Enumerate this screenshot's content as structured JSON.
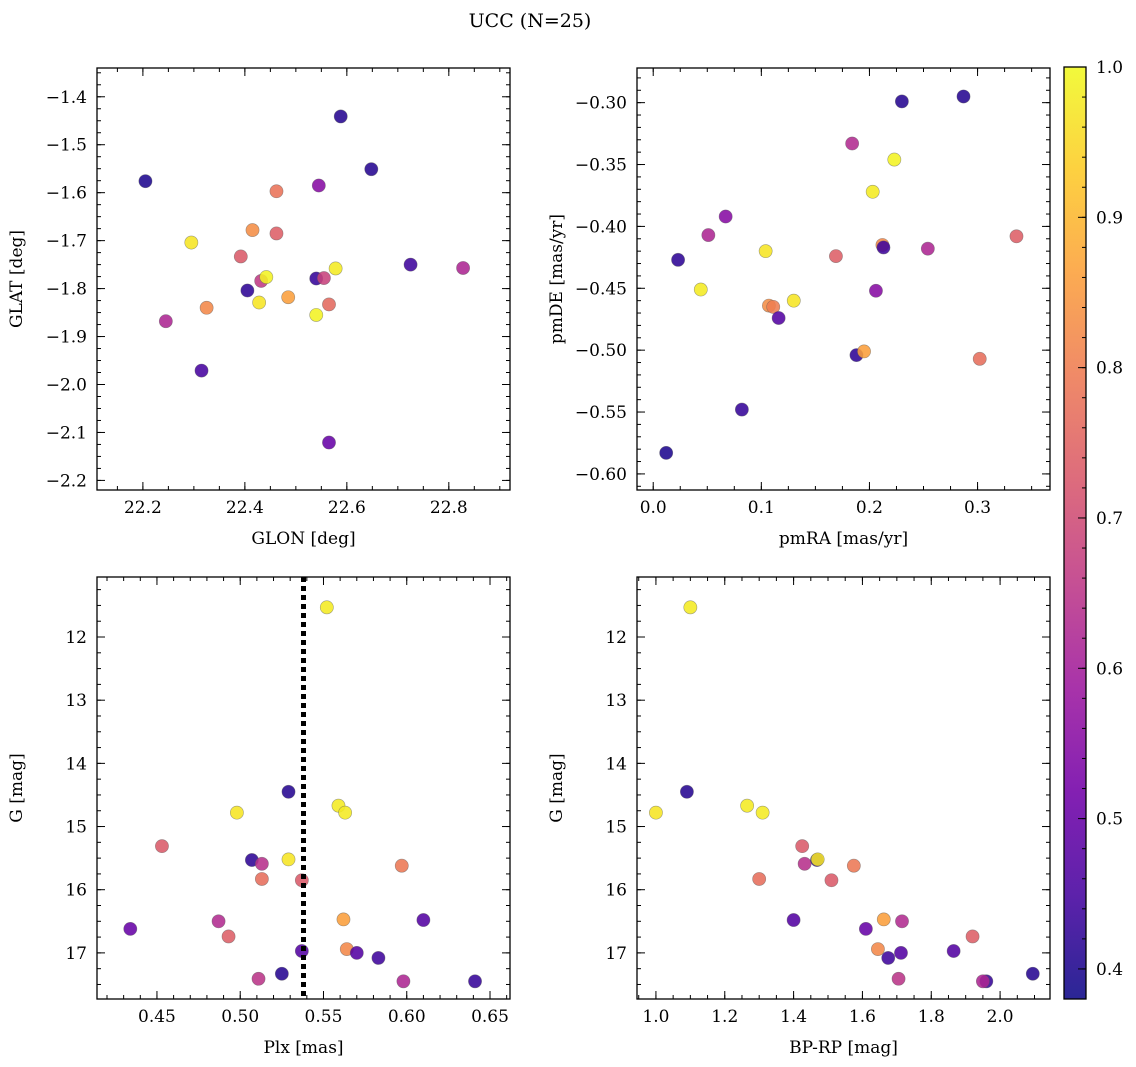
{
  "figure": {
    "title": "UCC (N=25)"
  },
  "colors": {
    "cmap": [
      "#0d0887",
      "#46039f",
      "#7201a8",
      "#9c179e",
      "#bd3786",
      "#d8576b",
      "#ed7953",
      "#fb9f3a",
      "#fdca26",
      "#f0f921"
    ],
    "vline": "#000000"
  },
  "chart_data": [
    {
      "type": "scatter",
      "xlabel": "GLON [deg]",
      "ylabel": "GLAT [deg]",
      "xlim": [
        22.11,
        22.92
      ],
      "ylim": [
        -2.22,
        -1.34
      ],
      "xticks": [
        22.2,
        22.4,
        22.6,
        22.8
      ],
      "xtick_labels": [
        "22.2",
        "22.4",
        "22.6",
        "22.8"
      ],
      "yticks": [
        -2.2,
        -2.1,
        -2.0,
        -1.9,
        -1.8,
        -1.7,
        -1.6,
        -1.5,
        -1.4
      ],
      "ytick_labels": [
        "−2.2",
        "−2.1",
        "−2.0",
        "−1.9",
        "−1.8",
        "−1.7",
        "−1.6",
        "−1.5",
        "−1.4"
      ],
      "x_minor": 0.05,
      "y_minor": 0.025,
      "y_inverted": false,
      "grid": false,
      "points": [
        {
          "x": 22.205,
          "y": -1.576,
          "c": 0.4
        },
        {
          "x": 22.295,
          "y": -1.704,
          "c": 0.97
        },
        {
          "x": 22.245,
          "y": -1.868,
          "c": 0.62
        },
        {
          "x": 22.315,
          "y": -1.971,
          "c": 0.45
        },
        {
          "x": 22.325,
          "y": -1.84,
          "c": 0.82
        },
        {
          "x": 22.392,
          "y": -1.733,
          "c": 0.73
        },
        {
          "x": 22.405,
          "y": -1.804,
          "c": 0.42
        },
        {
          "x": 22.415,
          "y": -1.678,
          "c": 0.83
        },
        {
          "x": 22.432,
          "y": -1.784,
          "c": 0.66
        },
        {
          "x": 22.428,
          "y": -1.829,
          "c": 0.97
        },
        {
          "x": 22.442,
          "y": -1.776,
          "c": 0.99
        },
        {
          "x": 22.462,
          "y": -1.597,
          "c": 0.78
        },
        {
          "x": 22.462,
          "y": -1.685,
          "c": 0.74
        },
        {
          "x": 22.485,
          "y": -1.818,
          "c": 0.86
        },
        {
          "x": 22.54,
          "y": -1.779,
          "c": 0.43
        },
        {
          "x": 22.54,
          "y": -1.855,
          "c": 0.99
        },
        {
          "x": 22.545,
          "y": -1.585,
          "c": 0.55
        },
        {
          "x": 22.555,
          "y": -1.778,
          "c": 0.68
        },
        {
          "x": 22.565,
          "y": -1.833,
          "c": 0.76
        },
        {
          "x": 22.578,
          "y": -1.758,
          "c": 0.98
        },
        {
          "x": 22.565,
          "y": -2.121,
          "c": 0.5
        },
        {
          "x": 22.588,
          "y": -1.441,
          "c": 0.41
        },
        {
          "x": 22.648,
          "y": -1.551,
          "c": 0.41
        },
        {
          "x": 22.725,
          "y": -1.75,
          "c": 0.44
        },
        {
          "x": 22.828,
          "y": -1.757,
          "c": 0.62
        }
      ]
    },
    {
      "type": "scatter",
      "xlabel": "pmRA [mas/yr]",
      "ylabel": "pmDE [mas/yr]",
      "xlim": [
        -0.015,
        0.367
      ],
      "ylim": [
        -0.613,
        -0.272
      ],
      "xticks": [
        0.0,
        0.1,
        0.2,
        0.3
      ],
      "xtick_labels": [
        "0.0",
        "0.1",
        "0.2",
        "0.3"
      ],
      "yticks": [
        -0.6,
        -0.55,
        -0.5,
        -0.45,
        -0.4,
        -0.35,
        -0.3
      ],
      "ytick_labels": [
        "−0.60",
        "−0.55",
        "−0.50",
        "−0.45",
        "−0.40",
        "−0.35",
        "−0.30"
      ],
      "x_minor": 0.025,
      "y_minor": 0.01,
      "y_inverted": false,
      "grid": false,
      "points": [
        {
          "x": 0.012,
          "y": -0.583,
          "c": 0.4
        },
        {
          "x": 0.023,
          "y": -0.427,
          "c": 0.42
        },
        {
          "x": 0.044,
          "y": -0.451,
          "c": 0.98
        },
        {
          "x": 0.051,
          "y": -0.407,
          "c": 0.62
        },
        {
          "x": 0.067,
          "y": -0.392,
          "c": 0.55
        },
        {
          "x": 0.082,
          "y": -0.548,
          "c": 0.43
        },
        {
          "x": 0.104,
          "y": -0.42,
          "c": 0.97
        },
        {
          "x": 0.107,
          "y": -0.464,
          "c": 0.83
        },
        {
          "x": 0.111,
          "y": -0.465,
          "c": 0.8
        },
        {
          "x": 0.116,
          "y": -0.474,
          "c": 0.47
        },
        {
          "x": 0.13,
          "y": -0.46,
          "c": 0.97
        },
        {
          "x": 0.169,
          "y": -0.424,
          "c": 0.74
        },
        {
          "x": 0.184,
          "y": -0.333,
          "c": 0.63
        },
        {
          "x": 0.188,
          "y": -0.504,
          "c": 0.42
        },
        {
          "x": 0.195,
          "y": -0.501,
          "c": 0.86
        },
        {
          "x": 0.203,
          "y": -0.372,
          "c": 0.98
        },
        {
          "x": 0.206,
          "y": -0.452,
          "c": 0.55
        },
        {
          "x": 0.212,
          "y": -0.415,
          "c": 0.82
        },
        {
          "x": 0.213,
          "y": -0.417,
          "c": 0.44
        },
        {
          "x": 0.223,
          "y": -0.346,
          "c": 0.99
        },
        {
          "x": 0.23,
          "y": -0.299,
          "c": 0.41
        },
        {
          "x": 0.254,
          "y": -0.418,
          "c": 0.62
        },
        {
          "x": 0.287,
          "y": -0.295,
          "c": 0.41
        },
        {
          "x": 0.302,
          "y": -0.507,
          "c": 0.77
        },
        {
          "x": 0.336,
          "y": -0.408,
          "c": 0.74
        }
      ]
    },
    {
      "type": "scatter",
      "xlabel": "Plx [mas]",
      "ylabel": "G [mag]",
      "xlim": [
        0.414,
        0.662
      ],
      "ylim": [
        17.73,
        11.05
      ],
      "xticks": [
        0.45,
        0.5,
        0.55,
        0.6,
        0.65
      ],
      "xtick_labels": [
        "0.45",
        "0.50",
        "0.55",
        "0.60",
        "0.65"
      ],
      "yticks": [
        12,
        13,
        14,
        15,
        16,
        17
      ],
      "ytick_labels": [
        "12",
        "13",
        "14",
        "15",
        "16",
        "17"
      ],
      "x_minor": 0.01,
      "y_minor": 0.25,
      "y_inverted": true,
      "grid": false,
      "vline": 0.538,
      "points": [
        {
          "x": 0.434,
          "y": 16.62,
          "c": 0.5
        },
        {
          "x": 0.453,
          "y": 15.31,
          "c": 0.73
        },
        {
          "x": 0.487,
          "y": 16.5,
          "c": 0.63
        },
        {
          "x": 0.493,
          "y": 16.74,
          "c": 0.74
        },
        {
          "x": 0.498,
          "y": 14.78,
          "c": 0.97
        },
        {
          "x": 0.507,
          "y": 15.53,
          "c": 0.42
        },
        {
          "x": 0.511,
          "y": 17.41,
          "c": 0.65
        },
        {
          "x": 0.513,
          "y": 15.59,
          "c": 0.64
        },
        {
          "x": 0.513,
          "y": 15.83,
          "c": 0.77
        },
        {
          "x": 0.525,
          "y": 17.33,
          "c": 0.41
        },
        {
          "x": 0.529,
          "y": 14.45,
          "c": 0.41
        },
        {
          "x": 0.529,
          "y": 15.52,
          "c": 0.97
        },
        {
          "x": 0.537,
          "y": 15.85,
          "c": 0.73
        },
        {
          "x": 0.537,
          "y": 16.97,
          "c": 0.47
        },
        {
          "x": 0.552,
          "y": 11.53,
          "c": 0.98
        },
        {
          "x": 0.559,
          "y": 14.67,
          "c": 0.98
        },
        {
          "x": 0.562,
          "y": 16.47,
          "c": 0.86
        },
        {
          "x": 0.563,
          "y": 14.78,
          "c": 0.98
        },
        {
          "x": 0.564,
          "y": 16.94,
          "c": 0.82
        },
        {
          "x": 0.57,
          "y": 17.0,
          "c": 0.47
        },
        {
          "x": 0.583,
          "y": 17.08,
          "c": 0.44
        },
        {
          "x": 0.597,
          "y": 15.62,
          "c": 0.79
        },
        {
          "x": 0.598,
          "y": 17.45,
          "c": 0.62
        },
        {
          "x": 0.61,
          "y": 16.48,
          "c": 0.47
        },
        {
          "x": 0.641,
          "y": 17.45,
          "c": 0.43
        }
      ]
    },
    {
      "type": "scatter",
      "xlabel": "BP-RP [mag]",
      "ylabel": "G [mag]",
      "xlim": [
        0.945,
        2.145
      ],
      "ylim": [
        17.73,
        11.05
      ],
      "xticks": [
        1.0,
        1.2,
        1.4,
        1.6,
        1.8,
        2.0
      ],
      "xtick_labels": [
        "1.0",
        "1.2",
        "1.4",
        "1.6",
        "1.8",
        "2.0"
      ],
      "yticks": [
        12,
        13,
        14,
        15,
        16,
        17
      ],
      "ytick_labels": [
        "12",
        "13",
        "14",
        "15",
        "16",
        "17"
      ],
      "x_minor": 0.05,
      "y_minor": 0.25,
      "y_inverted": true,
      "grid": false,
      "points": [
        {
          "x": 1.0,
          "y": 14.78,
          "c": 0.97
        },
        {
          "x": 1.09,
          "y": 14.45,
          "c": 0.41
        },
        {
          "x": 1.1,
          "y": 11.53,
          "c": 0.98
        },
        {
          "x": 1.265,
          "y": 14.67,
          "c": 0.98
        },
        {
          "x": 1.3,
          "y": 15.83,
          "c": 0.77
        },
        {
          "x": 1.31,
          "y": 14.78,
          "c": 0.98
        },
        {
          "x": 1.4,
          "y": 16.48,
          "c": 0.47
        },
        {
          "x": 1.425,
          "y": 15.31,
          "c": 0.73
        },
        {
          "x": 1.432,
          "y": 15.59,
          "c": 0.64
        },
        {
          "x": 1.468,
          "y": 15.53,
          "c": 0.42
        },
        {
          "x": 1.47,
          "y": 15.52,
          "c": 0.97
        },
        {
          "x": 1.51,
          "y": 15.85,
          "c": 0.73
        },
        {
          "x": 1.575,
          "y": 15.62,
          "c": 0.79
        },
        {
          "x": 1.61,
          "y": 16.62,
          "c": 0.5
        },
        {
          "x": 1.645,
          "y": 16.94,
          "c": 0.82
        },
        {
          "x": 1.662,
          "y": 16.47,
          "c": 0.86
        },
        {
          "x": 1.675,
          "y": 17.08,
          "c": 0.44
        },
        {
          "x": 1.705,
          "y": 17.41,
          "c": 0.65
        },
        {
          "x": 1.712,
          "y": 17.0,
          "c": 0.47
        },
        {
          "x": 1.715,
          "y": 16.5,
          "c": 0.63
        },
        {
          "x": 1.865,
          "y": 16.97,
          "c": 0.47
        },
        {
          "x": 1.92,
          "y": 16.74,
          "c": 0.74
        },
        {
          "x": 1.96,
          "y": 17.45,
          "c": 0.43
        },
        {
          "x": 1.95,
          "y": 17.45,
          "c": 0.62
        },
        {
          "x": 2.095,
          "y": 17.33,
          "c": 0.41
        }
      ]
    },
    {
      "type": "colorbar",
      "range": [
        0.38,
        1.0
      ],
      "ticks": [
        0.4,
        0.5,
        0.6,
        0.7,
        0.8,
        0.9,
        1.0
      ],
      "tick_labels": [
        "0.4",
        "0.5",
        "0.6",
        "0.7",
        "0.8",
        "0.9",
        "1.0"
      ],
      "minor": 0.02
    }
  ]
}
